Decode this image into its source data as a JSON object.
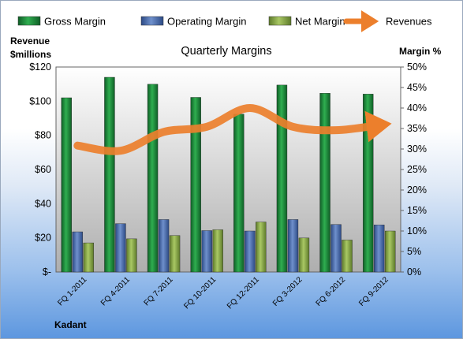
{
  "chart_data": {
    "type": "bar",
    "title": "Quarterly Margins",
    "company_label": "Kadant",
    "y_left_label": [
      "Revenue",
      "$millions"
    ],
    "y_right_label": "Margin %",
    "categories": [
      "FQ 1-2011",
      "FQ 4-2011",
      "FQ 7-2011",
      "FQ 10-2011",
      "FQ 12-2011",
      "FQ 3-2012",
      "FQ 6-2012",
      "FQ 9-2012"
    ],
    "series": [
      {
        "name": "Gross Margin",
        "axis": "right",
        "color": "#1f8a3e",
        "values": [
          42.5,
          47.5,
          45.8,
          42.6,
          38.5,
          45.6,
          43.6,
          43.4
        ]
      },
      {
        "name": "Operating Margin",
        "axis": "right",
        "color": "#4d6fae",
        "values": [
          9.8,
          11.8,
          12.8,
          10.1,
          10.0,
          12.8,
          11.6,
          11.5
        ]
      },
      {
        "name": "Net Margin",
        "axis": "right",
        "color": "#8db04a",
        "values": [
          7.1,
          8.1,
          8.9,
          10.3,
          12.2,
          8.3,
          7.8,
          10.0
        ]
      },
      {
        "name": "Revenues",
        "axis": "left",
        "type": "line",
        "color": "#ec7f2c",
        "values": [
          74,
          71,
          82,
          85,
          96,
          85,
          83,
          86
        ]
      }
    ],
    "y_left": {
      "min": 0,
      "max": 120,
      "ticks": [
        "$-",
        "$20",
        "$40",
        "$60",
        "$80",
        "$100",
        "$120"
      ]
    },
    "y_right": {
      "min": 0,
      "max": 50,
      "ticks": [
        "0%",
        "5%",
        "10%",
        "15%",
        "20%",
        "25%",
        "30%",
        "35%",
        "40%",
        "45%",
        "50%"
      ]
    },
    "grid": false,
    "legend_placement": "top"
  }
}
